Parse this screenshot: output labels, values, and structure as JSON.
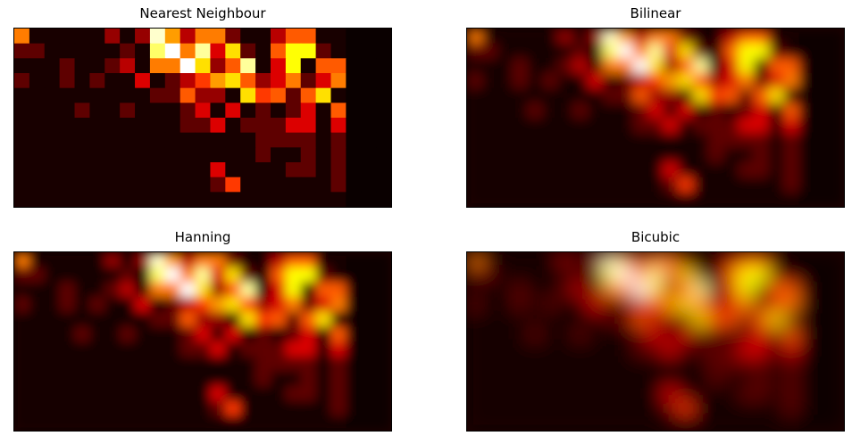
{
  "chart_data": [
    {
      "type": "heatmap",
      "title": "Nearest Neighbour",
      "interpolation": "nearest",
      "colormap": "hot",
      "grid": false,
      "ticks": false,
      "columns": 25,
      "rows": 12
    },
    {
      "type": "heatmap",
      "title": "Bilinear",
      "interpolation": "bilinear",
      "colormap": "hot",
      "grid": false,
      "ticks": false,
      "columns": 25,
      "rows": 12
    },
    {
      "type": "heatmap",
      "title": "Hanning",
      "interpolation": "hanning",
      "colormap": "hot",
      "grid": false,
      "ticks": false,
      "columns": 25,
      "rows": 12
    },
    {
      "type": "heatmap",
      "title": "Bicubic",
      "interpolation": "bicubic",
      "colormap": "hot",
      "grid": false,
      "ticks": false,
      "columns": 25,
      "rows": 12
    }
  ],
  "grid_values": [
    [
      0.55,
      0.02,
      0.02,
      0.02,
      0.02,
      0.02,
      0.2,
      0.02,
      0.2,
      0.95,
      0.6,
      0.25,
      0.55,
      0.55,
      0.15,
      0.02,
      0.02,
      0.25,
      0.5,
      0.5,
      0.02,
      0.02,
      0.0,
      0.0,
      0.0
    ],
    [
      0.12,
      0.12,
      0.02,
      0.02,
      0.02,
      0.02,
      0.02,
      0.12,
      0.02,
      0.85,
      1.0,
      0.55,
      0.9,
      0.3,
      0.7,
      0.12,
      0.02,
      0.5,
      0.75,
      0.75,
      0.12,
      0.02,
      0.0,
      0.0,
      0.0
    ],
    [
      0.02,
      0.02,
      0.02,
      0.12,
      0.02,
      0.02,
      0.12,
      0.25,
      0.02,
      0.55,
      0.55,
      1.0,
      0.7,
      0.2,
      0.5,
      0.9,
      0.02,
      0.3,
      0.75,
      0.02,
      0.5,
      0.5,
      0.0,
      0.0,
      0.0
    ],
    [
      0.12,
      0.02,
      0.02,
      0.12,
      0.02,
      0.12,
      0.02,
      0.02,
      0.3,
      0.02,
      0.12,
      0.25,
      0.45,
      0.6,
      0.7,
      0.5,
      0.2,
      0.3,
      0.55,
      0.12,
      0.3,
      0.55,
      0.0,
      0.0,
      0.0
    ],
    [
      0.02,
      0.02,
      0.02,
      0.02,
      0.02,
      0.02,
      0.02,
      0.02,
      0.02,
      0.12,
      0.12,
      0.5,
      0.2,
      0.2,
      0.02,
      0.7,
      0.45,
      0.5,
      0.12,
      0.5,
      0.7,
      0.02,
      0.0,
      0.0,
      0.0
    ],
    [
      0.02,
      0.02,
      0.02,
      0.02,
      0.12,
      0.02,
      0.02,
      0.12,
      0.02,
      0.02,
      0.02,
      0.12,
      0.3,
      0.02,
      0.3,
      0.02,
      0.12,
      0.02,
      0.12,
      0.3,
      0.02,
      0.5,
      0.0,
      0.0,
      0.0
    ],
    [
      0.02,
      0.02,
      0.02,
      0.02,
      0.02,
      0.02,
      0.02,
      0.02,
      0.02,
      0.02,
      0.02,
      0.12,
      0.12,
      0.3,
      0.02,
      0.12,
      0.12,
      0.12,
      0.3,
      0.3,
      0.02,
      0.3,
      0.0,
      0.0,
      0.0
    ],
    [
      0.02,
      0.02,
      0.02,
      0.02,
      0.02,
      0.02,
      0.02,
      0.02,
      0.02,
      0.02,
      0.02,
      0.02,
      0.02,
      0.02,
      0.02,
      0.02,
      0.12,
      0.12,
      0.12,
      0.12,
      0.02,
      0.12,
      0.0,
      0.0,
      0.0
    ],
    [
      0.02,
      0.02,
      0.02,
      0.02,
      0.02,
      0.02,
      0.02,
      0.02,
      0.02,
      0.02,
      0.02,
      0.02,
      0.02,
      0.02,
      0.02,
      0.02,
      0.12,
      0.02,
      0.02,
      0.12,
      0.02,
      0.12,
      0.0,
      0.0,
      0.0
    ],
    [
      0.02,
      0.02,
      0.02,
      0.02,
      0.02,
      0.02,
      0.02,
      0.02,
      0.02,
      0.02,
      0.02,
      0.02,
      0.02,
      0.3,
      0.02,
      0.02,
      0.02,
      0.02,
      0.12,
      0.12,
      0.02,
      0.12,
      0.0,
      0.0,
      0.0
    ],
    [
      0.02,
      0.02,
      0.02,
      0.02,
      0.02,
      0.02,
      0.02,
      0.02,
      0.02,
      0.02,
      0.02,
      0.02,
      0.02,
      0.12,
      0.45,
      0.02,
      0.02,
      0.02,
      0.02,
      0.02,
      0.02,
      0.12,
      0.0,
      0.0,
      0.0
    ],
    [
      0.02,
      0.02,
      0.02,
      0.02,
      0.02,
      0.02,
      0.02,
      0.02,
      0.02,
      0.02,
      0.02,
      0.02,
      0.02,
      0.02,
      0.02,
      0.02,
      0.02,
      0.02,
      0.02,
      0.02,
      0.02,
      0.02,
      0.0,
      0.0,
      0.0
    ]
  ]
}
